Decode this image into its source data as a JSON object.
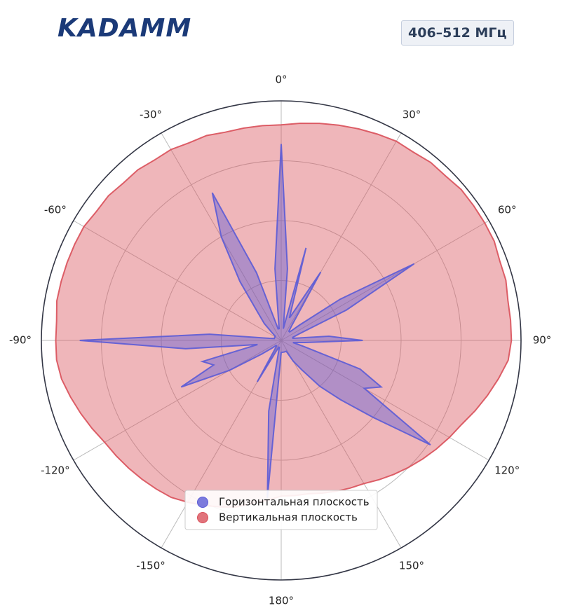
{
  "header": {
    "logo": "KADAMM",
    "badge": "406–512 МГц"
  },
  "chart_data": {
    "type": "polar",
    "theta": [
      -180,
      -175,
      -170,
      -165,
      -160,
      -155,
      -150,
      -145,
      -140,
      -135,
      -130,
      -125,
      -120,
      -115,
      -110,
      -105,
      -100,
      -95,
      -90,
      -85,
      -80,
      -75,
      -70,
      -65,
      -60,
      -55,
      -50,
      -45,
      -40,
      -35,
      -30,
      -25,
      -20,
      -15,
      -10,
      -5,
      0,
      5,
      10,
      15,
      20,
      25,
      30,
      35,
      40,
      45,
      50,
      55,
      60,
      65,
      70,
      75,
      80,
      85,
      90,
      95,
      100,
      105,
      110,
      115,
      120,
      125,
      130,
      135,
      140,
      145,
      150,
      155,
      160,
      165,
      170,
      175
    ],
    "series": [
      {
        "name": "Вертикальная плоскость",
        "color": "#d9505a",
        "values": [
          0.65,
          0.67,
          0.69,
          0.72,
          0.74,
          0.76,
          0.78,
          0.8,
          0.81,
          0.82,
          0.83,
          0.84,
          0.85,
          0.87,
          0.89,
          0.91,
          0.93,
          0.94,
          0.94,
          0.94,
          0.95,
          0.95,
          0.95,
          0.95,
          0.95,
          0.94,
          0.94,
          0.93,
          0.93,
          0.92,
          0.92,
          0.91,
          0.91,
          0.9,
          0.9,
          0.9,
          0.9,
          0.91,
          0.92,
          0.93,
          0.94,
          0.95,
          0.96,
          0.96,
          0.97,
          0.97,
          0.98,
          0.98,
          0.98,
          0.98,
          0.97,
          0.97,
          0.96,
          0.96,
          0.96,
          0.95,
          0.92,
          0.89,
          0.86,
          0.83,
          0.81,
          0.79,
          0.77,
          0.75,
          0.73,
          0.71,
          0.69,
          0.68,
          0.67,
          0.66,
          0.65,
          0.65
        ]
      },
      {
        "name": "Горизонтальная плоскость",
        "color": "#5b5bd6",
        "values": [
          0.05,
          0.66,
          0.3,
          0.03,
          0.03,
          0.05,
          0.2,
          0.05,
          0.03,
          0.03,
          0.05,
          0.1,
          0.25,
          0.46,
          0.3,
          0.34,
          0.1,
          0.4,
          0.84,
          0.3,
          0.05,
          0.03,
          0.03,
          0.03,
          0.03,
          0.03,
          0.05,
          0.1,
          0.15,
          0.3,
          0.5,
          0.68,
          0.3,
          0.05,
          0.05,
          0.3,
          0.82,
          0.3,
          0.05,
          0.4,
          0.1,
          0.15,
          0.33,
          0.08,
          0.05,
          0.05,
          0.1,
          0.3,
          0.64,
          0.3,
          0.08,
          0.05,
          0.05,
          0.2,
          0.34,
          0.1,
          0.05,
          0.1,
          0.35,
          0.46,
          0.4,
          0.76,
          0.5,
          0.35,
          0.25,
          0.15,
          0.1,
          0.05,
          0.05,
          0.05,
          0.05,
          0.05
        ]
      }
    ],
    "legend_order": [
      1,
      0
    ],
    "rlim": [
      0,
      1
    ],
    "rticks": [
      0.25,
      0.5,
      0.75
    ],
    "thetaticks": [
      {
        "value": 0,
        "label": "0°"
      },
      {
        "value": 30,
        "label": "30°"
      },
      {
        "value": 60,
        "label": "60°"
      },
      {
        "value": 90,
        "label": "90°"
      },
      {
        "value": 120,
        "label": "120°"
      },
      {
        "value": 150,
        "label": "150°"
      },
      {
        "value": 180,
        "label": "180°"
      },
      {
        "value": -150,
        "label": "-150°"
      },
      {
        "value": -120,
        "label": "-120°"
      },
      {
        "value": -90,
        "label": "-90°"
      },
      {
        "value": -60,
        "label": "-60°"
      },
      {
        "value": -30,
        "label": "-30°"
      }
    ],
    "theta_zero": "top",
    "clockwise": true,
    "grid": true,
    "legend": "lower center"
  }
}
